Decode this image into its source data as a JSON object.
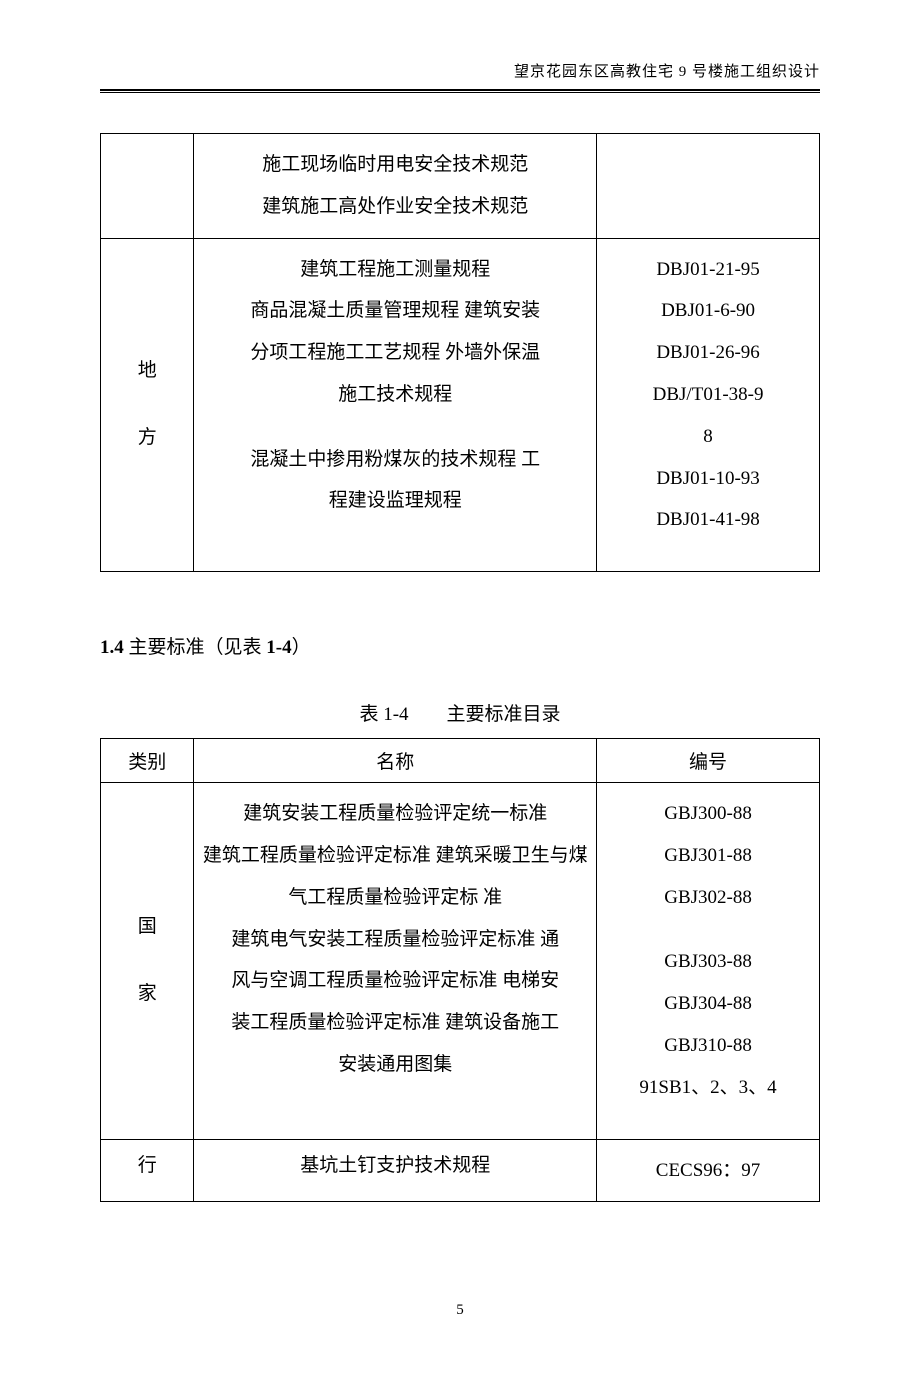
{
  "header": {
    "title": "望京花园东区高教住宅 9 号楼施工组织设计"
  },
  "table1": {
    "rows": [
      {
        "category": "",
        "name_lines": [
          "施工现场临时用电安全技术规范",
          "建筑施工高处作业安全技术规范"
        ],
        "code_lines": []
      },
      {
        "category_lines": [
          "地",
          "方"
        ],
        "name_lines": [
          "建筑工程施工测量规程",
          "商品混凝土质量管理规程 建筑安装",
          "分项工程施工工艺规程 外墙外保温",
          "施工技术规程",
          "",
          "混凝土中掺用粉煤灰的技术规程 工",
          "程建设监理规程"
        ],
        "code_lines": [
          "DBJ01-21-95",
          "DBJ01-6-90",
          "DBJ01-26-96",
          "DBJ/T01-38-9",
          "8",
          "DBJ01-10-93",
          "DBJ01-41-98"
        ]
      }
    ]
  },
  "section": {
    "prefix": "1.4",
    "text": " 主要标准（见表 ",
    "mid": "1-4",
    "suffix": "）"
  },
  "caption": {
    "pre": "表 ",
    "num": "1-4",
    "post": "　　主要标准目录"
  },
  "table2": {
    "headers": {
      "cat": "类别",
      "name": "名称",
      "code": "编号"
    },
    "rows": [
      {
        "category_lines": [
          "国",
          "家"
        ],
        "name_lines": [
          "建筑安装工程质量检验评定统一标准",
          "建筑工程质量检验评定标准 建筑采暖卫生与煤",
          "气工程质量检验评定标 准",
          "建筑电气安装工程质量检验评定标准 通",
          "风与空调工程质量检验评定标准 电梯安",
          "装工程质量检验评定标准 建筑设备施工",
          "安装通用图集"
        ],
        "code_lines": [
          "GBJ300-88",
          "GBJ301-88",
          "GBJ302-88",
          "",
          "GBJ303-88",
          "GBJ304-88",
          "GBJ310-88",
          "91SB1、2、3、4"
        ]
      },
      {
        "category": "行",
        "name_lines": [
          "基坑土钉支护技术规程"
        ],
        "code_lines": [
          "CECS96：97"
        ]
      }
    ]
  },
  "page_number": "5"
}
